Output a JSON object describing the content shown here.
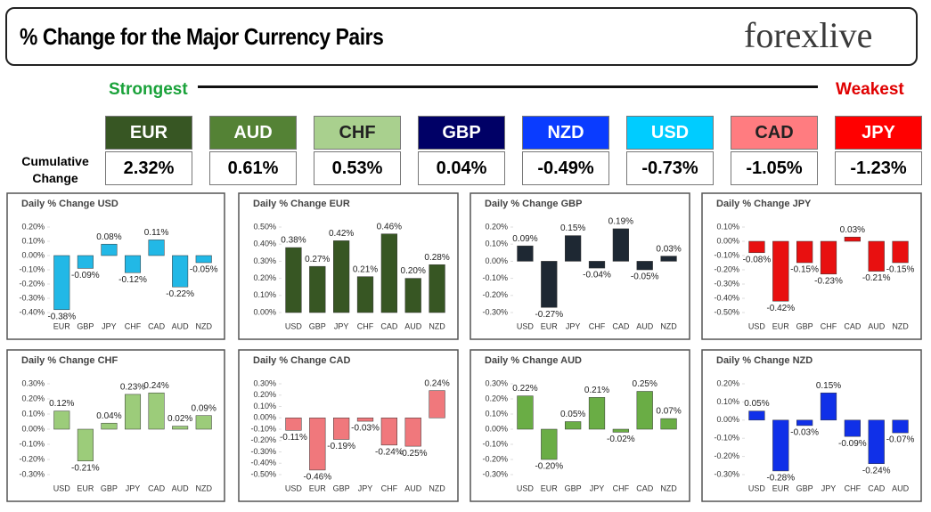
{
  "header": {
    "title": "% Change for the Major Currency Pairs",
    "logo": "forexlive"
  },
  "scale": {
    "strongest": "Strongest",
    "weakest": "Weakest"
  },
  "ranking": {
    "label": "Cumulative Change",
    "currencies": [
      {
        "name": "EUR",
        "value": "2.32%",
        "color": "#375623"
      },
      {
        "name": "AUD",
        "value": "0.61%",
        "color": "#548235"
      },
      {
        "name": "CHF",
        "value": "0.53%",
        "color": "#a9d08e"
      },
      {
        "name": "GBP",
        "value": "0.04%",
        "color": "#000066"
      },
      {
        "name": "NZD",
        "value": "-0.49%",
        "color": "#0a3cff"
      },
      {
        "name": "USD",
        "value": "-0.73%",
        "color": "#00ccff"
      },
      {
        "name": "CAD",
        "value": "-1.05%",
        "color": "#ff7c80"
      },
      {
        "name": "JPY",
        "value": "-1.23%",
        "color": "#ff0000"
      }
    ]
  },
  "chart_data": [
    {
      "type": "bar",
      "title": "Daily % Change USD",
      "color": "#22b8e6",
      "categories": [
        "EUR",
        "GBP",
        "JPY",
        "CHF",
        "CAD",
        "AUD",
        "NZD"
      ],
      "values": [
        -0.38,
        -0.09,
        0.08,
        -0.12,
        0.11,
        -0.22,
        -0.05
      ],
      "value_labels": [
        "-0.38%",
        "-0.09%",
        "0.08%",
        "-0.12%",
        "0.11%",
        "-0.22%",
        "-0.05%"
      ],
      "ylim": [
        -0.4,
        0.2
      ],
      "yticks": [
        {
          "value": 0.2,
          "label": "0.20%"
        },
        {
          "value": 0.1,
          "label": "0.10%"
        },
        {
          "value": 0,
          "label": "0.00%"
        },
        {
          "value": -0.1,
          "label": "-0.10%"
        },
        {
          "value": -0.2,
          "label": "-0.20%"
        },
        {
          "value": -0.3,
          "label": "-0.30%"
        },
        {
          "value": -0.4,
          "label": "-0.40%"
        }
      ]
    },
    {
      "type": "bar",
      "title": "Daily % Change EUR",
      "color": "#375623",
      "categories": [
        "USD",
        "GBP",
        "JPY",
        "CHF",
        "CAD",
        "AUD",
        "NZD"
      ],
      "values": [
        0.38,
        0.27,
        0.42,
        0.21,
        0.46,
        0.2,
        0.28
      ],
      "value_labels": [
        "0.38%",
        "0.27%",
        "0.42%",
        "0.21%",
        "0.46%",
        "0.20%",
        "0.28%"
      ],
      "ylim": [
        0,
        0.5
      ],
      "yticks": [
        {
          "value": 0.5,
          "label": "0.50%"
        },
        {
          "value": 0.4,
          "label": "0.40%"
        },
        {
          "value": 0.3,
          "label": "0.30%"
        },
        {
          "value": 0.2,
          "label": "0.20%"
        },
        {
          "value": 0.1,
          "label": "0.10%"
        },
        {
          "value": 0,
          "label": "0.00%"
        }
      ]
    },
    {
      "type": "bar",
      "title": "Daily % Change GBP",
      "color": "#1e2833",
      "categories": [
        "USD",
        "EUR",
        "JPY",
        "CHF",
        "CAD",
        "AUD",
        "NZD"
      ],
      "values": [
        0.09,
        -0.27,
        0.15,
        -0.04,
        0.19,
        -0.05,
        0.03
      ],
      "value_labels": [
        "0.09%",
        "-0.27%",
        "0.15%",
        "-0.04%",
        "0.19%",
        "-0.05%",
        "0.03%"
      ],
      "ylim": [
        -0.3,
        0.2
      ],
      "yticks": [
        {
          "value": 0.2,
          "label": "0.20%"
        },
        {
          "value": 0.1,
          "label": "0.10%"
        },
        {
          "value": 0,
          "label": "0.00%"
        },
        {
          "value": -0.1,
          "label": "-0.10%"
        },
        {
          "value": -0.2,
          "label": "-0.20%"
        },
        {
          "value": -0.3,
          "label": "-0.30%"
        }
      ]
    },
    {
      "type": "bar",
      "title": "Daily % Change JPY",
      "color": "#e81010",
      "categories": [
        "USD",
        "EUR",
        "GBP",
        "CHF",
        "CAD",
        "AUD",
        "NZD"
      ],
      "values": [
        -0.08,
        -0.42,
        -0.15,
        -0.23,
        0.03,
        -0.21,
        -0.15
      ],
      "value_labels": [
        "-0.08%",
        "-0.42%",
        "-0.15%",
        "-0.23%",
        "0.03%",
        "-0.21%",
        "-0.15%"
      ],
      "ylim": [
        -0.5,
        0.1
      ],
      "yticks": [
        {
          "value": 0.1,
          "label": "0.10%"
        },
        {
          "value": 0,
          "label": "0.00%"
        },
        {
          "value": -0.1,
          "label": "-0.10%"
        },
        {
          "value": -0.2,
          "label": "-0.20%"
        },
        {
          "value": -0.3,
          "label": "-0.30%"
        },
        {
          "value": -0.4,
          "label": "-0.40%"
        },
        {
          "value": -0.5,
          "label": "-0.50%"
        }
      ]
    },
    {
      "type": "bar",
      "title": "Daily % Change CHF",
      "color": "#9ccc7a",
      "categories": [
        "USD",
        "EUR",
        "GBP",
        "JPY",
        "CAD",
        "AUD",
        "NZD"
      ],
      "values": [
        0.12,
        -0.21,
        0.04,
        0.23,
        0.24,
        0.02,
        0.09
      ],
      "value_labels": [
        "0.12%",
        "-0.21%",
        "0.04%",
        "0.23%",
        "0.24%",
        "0.02%",
        "0.09%"
      ],
      "ylim": [
        -0.3,
        0.3
      ],
      "yticks": [
        {
          "value": 0.3,
          "label": "0.30%"
        },
        {
          "value": 0.2,
          "label": "0.20%"
        },
        {
          "value": 0.1,
          "label": "0.10%"
        },
        {
          "value": 0,
          "label": "0.00%"
        },
        {
          "value": -0.1,
          "label": "-0.10%"
        },
        {
          "value": -0.2,
          "label": "-0.20%"
        },
        {
          "value": -0.3,
          "label": "-0.30%"
        }
      ]
    },
    {
      "type": "bar",
      "title": "Daily % Change CAD",
      "color": "#f0787c",
      "categories": [
        "USD",
        "EUR",
        "GBP",
        "JPY",
        "CHF",
        "AUD",
        "NZD"
      ],
      "values": [
        -0.11,
        -0.46,
        -0.19,
        -0.03,
        -0.24,
        -0.25,
        0.24
      ],
      "value_labels": [
        "-0.11%",
        "-0.46%",
        "-0.19%",
        "-0.03%",
        "-0.24%",
        "-0.25%",
        "0.24%"
      ],
      "ylim": [
        -0.5,
        0.3
      ],
      "yticks": [
        {
          "value": 0.3,
          "label": "0.30%"
        },
        {
          "value": 0.2,
          "label": "0.20%"
        },
        {
          "value": 0.1,
          "label": "0.10%"
        },
        {
          "value": 0,
          "label": "0.00%"
        },
        {
          "value": -0.1,
          "label": "-0.10%"
        },
        {
          "value": -0.2,
          "label": "-0.20%"
        },
        {
          "value": -0.3,
          "label": "-0.30%"
        },
        {
          "value": -0.4,
          "label": "-0.40%"
        },
        {
          "value": -0.5,
          "label": "-0.50%"
        }
      ]
    },
    {
      "type": "bar",
      "title": "Daily % Change AUD",
      "color": "#6aad45",
      "categories": [
        "USD",
        "EUR",
        "GBP",
        "JPY",
        "CHF",
        "CAD",
        "NZD"
      ],
      "values": [
        0.22,
        -0.2,
        0.05,
        0.21,
        -0.02,
        0.25,
        0.07
      ],
      "value_labels": [
        "0.22%",
        "-0.20%",
        "0.05%",
        "0.21%",
        "-0.02%",
        "0.25%",
        "0.07%"
      ],
      "ylim": [
        -0.3,
        0.3
      ],
      "yticks": [
        {
          "value": 0.3,
          "label": "0.30%"
        },
        {
          "value": 0.2,
          "label": "0.20%"
        },
        {
          "value": 0.1,
          "label": "0.10%"
        },
        {
          "value": 0,
          "label": "0.00%"
        },
        {
          "value": -0.1,
          "label": "-0.10%"
        },
        {
          "value": -0.2,
          "label": "-0.20%"
        },
        {
          "value": -0.3,
          "label": "-0.30%"
        }
      ]
    },
    {
      "type": "bar",
      "title": "Daily % Change NZD",
      "color": "#1030e8",
      "categories": [
        "USD",
        "EUR",
        "GBP",
        "JPY",
        "CHF",
        "CAD",
        "AUD"
      ],
      "values": [
        0.05,
        -0.28,
        -0.03,
        0.15,
        -0.09,
        -0.24,
        -0.07
      ],
      "value_labels": [
        "0.05%",
        "-0.28%",
        "-0.03%",
        "0.15%",
        "-0.09%",
        "-0.24%",
        "-0.07%"
      ],
      "ylim": [
        -0.3,
        0.2
      ],
      "yticks": [
        {
          "value": 0.2,
          "label": "0.20%"
        },
        {
          "value": 0.1,
          "label": "0.10%"
        },
        {
          "value": 0,
          "label": "0.00%"
        },
        {
          "value": -0.1,
          "label": "-0.10%"
        },
        {
          "value": -0.2,
          "label": "-0.20%"
        },
        {
          "value": -0.3,
          "label": "-0.30%"
        }
      ]
    }
  ]
}
